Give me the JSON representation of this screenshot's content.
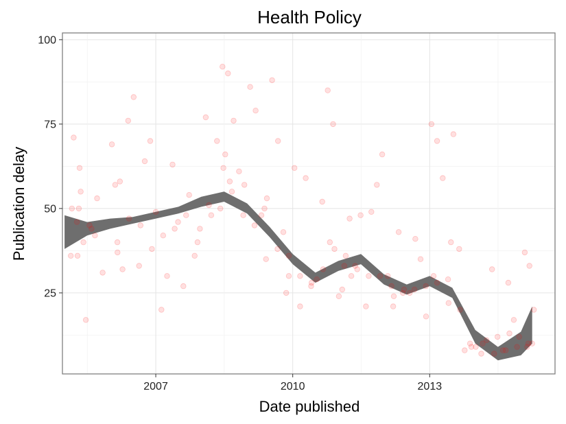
{
  "chart_data": {
    "type": "scatter",
    "title": "Health Policy",
    "xlabel": "Date published",
    "ylabel": "Publication delay",
    "x_ticks": [
      "2007",
      "2010",
      "2013"
    ],
    "y_ticks": [
      "25",
      "50",
      "75",
      "100"
    ],
    "xlim": [
      "2004-12-15",
      "2015-10-01"
    ],
    "ylim": [
      1,
      102
    ],
    "grid": true,
    "point_color": "#ff0000",
    "point_opacity": 0.12,
    "smooth_color": "#6e6e6e",
    "smooth": {
      "x": [
        "2005-01-01",
        "2005-07-01",
        "2006-01-01",
        "2006-07-01",
        "2007-01-01",
        "2007-07-01",
        "2008-01-01",
        "2008-07-01",
        "2009-01-01",
        "2009-07-01",
        "2010-01-01",
        "2010-07-01",
        "2011-01-01",
        "2011-07-01",
        "2012-01-01",
        "2012-07-01",
        "2013-01-01",
        "2013-07-01",
        "2014-01-01",
        "2014-07-01",
        "2015-01-01",
        "2015-04-01"
      ],
      "y": [
        43,
        44,
        45.5,
        46.5,
        48,
        49.5,
        52,
        53.5,
        50,
        43,
        35,
        29.5,
        33,
        35,
        29,
        26,
        28.5,
        25,
        12,
        7,
        10,
        16
      ],
      "lower": [
        38,
        42,
        44,
        45.5,
        47,
        48.5,
        50.5,
        52,
        48.5,
        41.5,
        33.5,
        28,
        31.5,
        33.5,
        27.5,
        24.5,
        27,
        23.5,
        10,
        5,
        6.5,
        10
      ],
      "upper": [
        48,
        46,
        47,
        47.5,
        49,
        50.5,
        53.5,
        55,
        51.5,
        44.5,
        36.5,
        31,
        34.5,
        36.5,
        30.5,
        27.5,
        30,
        26.5,
        14,
        9,
        13.5,
        21
      ]
    },
    "points": {
      "x": [
        "2005-02-20",
        "2005-04-10",
        "2005-03-15",
        "2005-05-01",
        "2005-06-20",
        "2005-08-05",
        "2005-09-18",
        "2005-11-02",
        "2006-01-15",
        "2006-02-28",
        "2006-04-10",
        "2006-05-25",
        "2006-07-08",
        "2006-08-20",
        "2006-10-05",
        "2006-11-18",
        "2007-01-01",
        "2007-02-15",
        "2007-04-01",
        "2007-05-15",
        "2007-06-28",
        "2007-08-10",
        "2007-09-25",
        "2007-11-08",
        "2007-12-20",
        "2008-02-05",
        "2008-03-20",
        "2008-05-05",
        "2008-06-18",
        "2008-08-01",
        "2008-09-15",
        "2008-10-28",
        "2008-12-10",
        "2009-01-25",
        "2009-03-10",
        "2009-04-25",
        "2009-06-08",
        "2009-07-20",
        "2009-09-05",
        "2009-10-18",
        "2009-12-01",
        "2010-01-15",
        "2010-03-01",
        "2010-04-15",
        "2010-05-28",
        "2010-07-12",
        "2010-08-25",
        "2010-10-08",
        "2010-11-20",
        "2011-01-05",
        "2011-02-18",
        "2011-04-01",
        "2011-05-15",
        "2011-06-28",
        "2011-08-10",
        "2011-09-22",
        "2011-11-05",
        "2011-12-18",
        "2012-02-01",
        "2012-03-15",
        "2012-04-28",
        "2012-06-10",
        "2012-07-25",
        "2012-09-08",
        "2012-10-20",
        "2012-12-03",
        "2013-01-15",
        "2013-03-01",
        "2013-04-15",
        "2013-05-28",
        "2013-07-10",
        "2013-08-25",
        "2013-10-08",
        "2013-11-20",
        "2014-01-05",
        "2014-02-18",
        "2014-04-01",
        "2014-05-15",
        "2014-06-28",
        "2014-08-10",
        "2014-09-22",
        "2014-11-05",
        "2014-12-18",
        "2015-02-01",
        "2015-03-10",
        "2015-04-15",
        "2005-06-01",
        "2006-03-01",
        "2006-09-01",
        "2007-03-01",
        "2007-09-01",
        "2008-03-01",
        "2008-09-01",
        "2009-03-01",
        "2009-09-01",
        "2010-03-01",
        "2010-09-01",
        "2011-03-01",
        "2011-09-01",
        "2012-03-01",
        "2012-09-01",
        "2013-03-01",
        "2013-09-01",
        "2014-03-01",
        "2014-09-01",
        "2015-03-01",
        "2005-03-01",
        "2005-09-01",
        "2006-06-01",
        "2006-12-01",
        "2007-06-01",
        "2007-12-01",
        "2008-06-01",
        "2008-12-01",
        "2009-06-01",
        "2009-12-01",
        "2010-06-01",
        "2010-12-01",
        "2011-06-01",
        "2011-12-01",
        "2012-06-01",
        "2012-12-01",
        "2013-06-01",
        "2013-12-01",
        "2014-06-01",
        "2014-12-01",
        "2015-04-01",
        "2005-04-15",
        "2008-06-25",
        "2008-07-10",
        "2008-08-15",
        "2009-05-20",
        "2009-11-10",
        "2010-10-25",
        "2011-02-01",
        "2011-04-15",
        "2012-03-20",
        "2013-02-01",
        "2013-06-20",
        "2014-10-01",
        "2015-02-20",
        "2005-07-20",
        "2006-02-10",
        "2006-03-20",
        "2005-05-10",
        "2005-04-25"
      ],
      "y": [
        36,
        46,
        71,
        62,
        17,
        44,
        53,
        31,
        69,
        40,
        32,
        76,
        83,
        33,
        64,
        70,
        49,
        20,
        30,
        63,
        46,
        27,
        54,
        36,
        44,
        77,
        48,
        70,
        92,
        90,
        76,
        61,
        57,
        86,
        79,
        48,
        53,
        88,
        70,
        43,
        36,
        62,
        21,
        59,
        27,
        29,
        52,
        85,
        75,
        24,
        33,
        47,
        33,
        48,
        21,
        49,
        57,
        66,
        30,
        21,
        43,
        26,
        25,
        41,
        35,
        18,
        75,
        70,
        59,
        29,
        72,
        38,
        8,
        10,
        9,
        7,
        11,
        32,
        12,
        8,
        28,
        17,
        12,
        37,
        33,
        20,
        40,
        37,
        45,
        42,
        48,
        51,
        55,
        45,
        38,
        30,
        32,
        36,
        30,
        27,
        26,
        28,
        20,
        10,
        8,
        10,
        50,
        42,
        47,
        38,
        44,
        40,
        50,
        48,
        35,
        30,
        28,
        38,
        32,
        30,
        25,
        27,
        22,
        9,
        7,
        9,
        10,
        36,
        62,
        66,
        58,
        50,
        25,
        40,
        26,
        30,
        24,
        30,
        40,
        13,
        9,
        45,
        57,
        58,
        55,
        50
      ]
    }
  }
}
